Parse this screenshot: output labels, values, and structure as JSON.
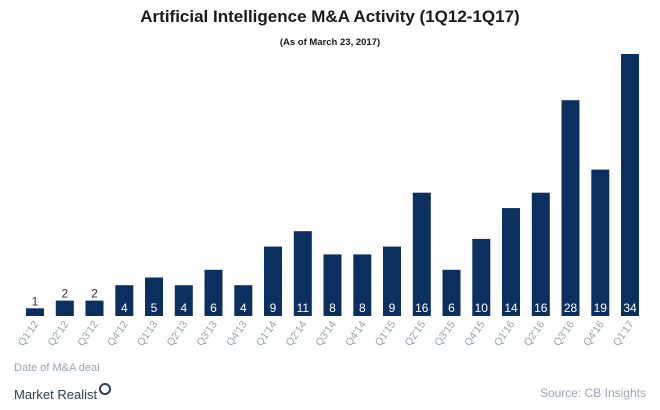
{
  "chart_data": {
    "type": "bar",
    "title": "Artificial Intelligence M&A Activity (1Q12-1Q17)",
    "subtitle": "(As of March 23, 2017)",
    "xlabel": "Date of M&A deal",
    "ylabel": "",
    "categories": [
      "Q1'12",
      "Q2'12",
      "Q3'12",
      "Q4'12",
      "Q1'13",
      "Q2'13",
      "Q3'13",
      "Q4'13",
      "Q1'14",
      "Q2'14",
      "Q3'14",
      "Q4'14",
      "Q1'15",
      "Q2'15",
      "Q3'15",
      "Q4'15",
      "Q1'16",
      "Q2'16",
      "Q3'16",
      "Q4'16",
      "Q1'17"
    ],
    "values": [
      1,
      2,
      2,
      4,
      5,
      4,
      6,
      4,
      9,
      11,
      8,
      8,
      9,
      16,
      6,
      10,
      14,
      16,
      28,
      19,
      34
    ],
    "ylim": [
      0,
      34
    ],
    "bar_color": "#0b2f5e",
    "label_color_inside": "#ffffff",
    "label_color_outside": "#333333",
    "tick_color": "#9aa3ad",
    "grid": false,
    "legend": "none"
  },
  "footer": {
    "brand": "Market Realist",
    "source": "Source:  CB Insights"
  }
}
